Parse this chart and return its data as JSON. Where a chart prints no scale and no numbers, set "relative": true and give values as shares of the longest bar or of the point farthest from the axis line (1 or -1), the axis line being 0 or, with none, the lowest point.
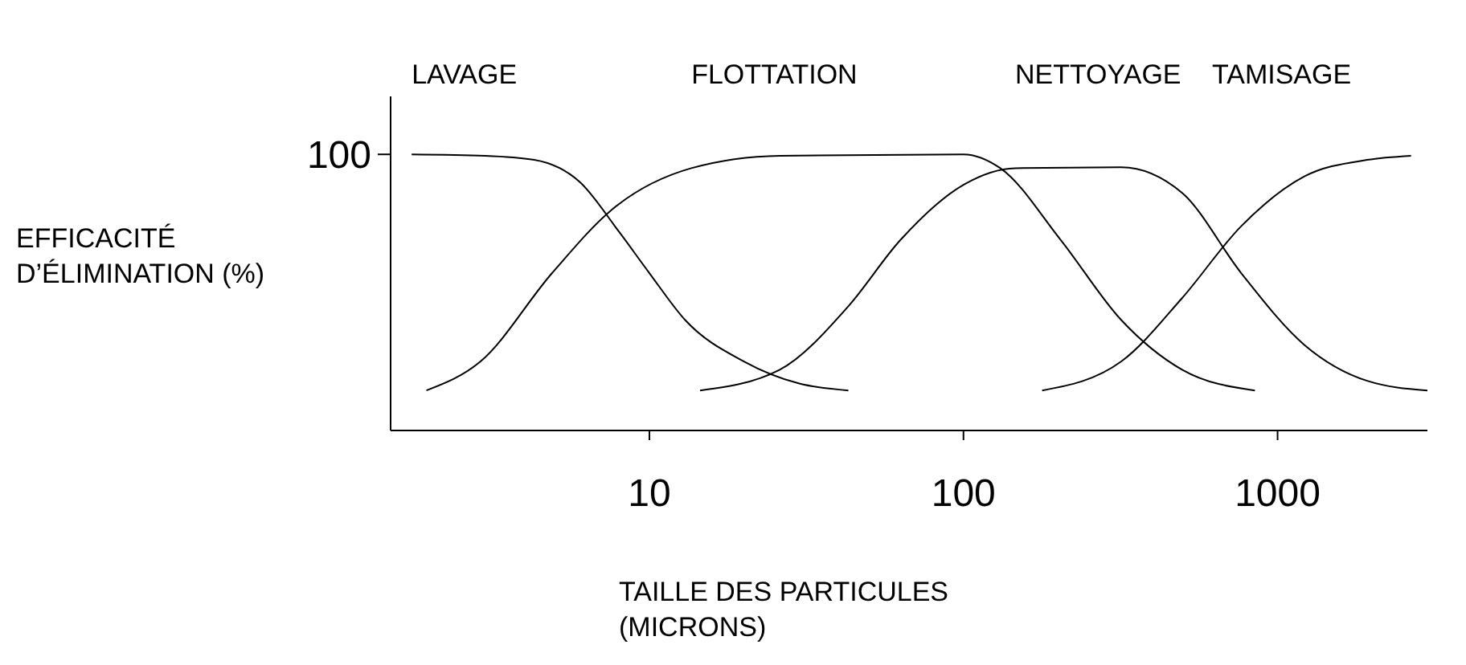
{
  "chart_data": {
    "type": "line",
    "xlabel": "TAILLE DES PARTICULES (MICRONS)",
    "ylabel": "EFFICACITÉ D’ÉLIMINATION (%)",
    "annotations": [
      "100"
    ],
    "relative": true,
    "log": "x",
    "xlim": [
      1.5,
      3000
    ],
    "xticks": [
      10,
      100,
      1000
    ],
    "marker": "none",
    "line_style": "solid",
    "series": [
      {
        "name": "LAVAGE",
        "color": "#000000",
        "x": [
          1.75,
          3,
          4.3,
          6,
          8,
          10,
          13,
          20,
          30,
          43
        ],
        "values": [
          1.0,
          0.995,
          0.98,
          0.9,
          0.72,
          0.57,
          0.4,
          0.25,
          0.17,
          0.145
        ]
      },
      {
        "name": "FLOTTATION",
        "color": "#000000",
        "x": [
          1.95,
          2.9,
          4.9,
          7.6,
          13.6,
          26,
          100,
          131,
          204,
          318,
          497,
          847
        ],
        "values": [
          0.145,
          0.25,
          0.57,
          0.8,
          0.95,
          0.995,
          1.0,
          0.95,
          0.69,
          0.4,
          0.22,
          0.145
        ]
      },
      {
        "name": "NETTOYAGE",
        "color": "#000000",
        "x": [
          14.5,
          26,
          43,
          63,
          100,
          146,
          318,
          497,
          766,
          1217,
          1928,
          3000
        ],
        "values": [
          0.145,
          0.22,
          0.45,
          0.69,
          0.89,
          0.95,
          0.953,
          0.86,
          0.57,
          0.31,
          0.18,
          0.145
        ]
      },
      {
        "name": "TAMISAGE",
        "color": "#000000",
        "x": [
          178,
          318,
          497,
          766,
          1217,
          1928,
          2660
        ],
        "values": [
          0.145,
          0.25,
          0.48,
          0.74,
          0.92,
          0.98,
          0.995
        ]
      }
    ]
  }
}
